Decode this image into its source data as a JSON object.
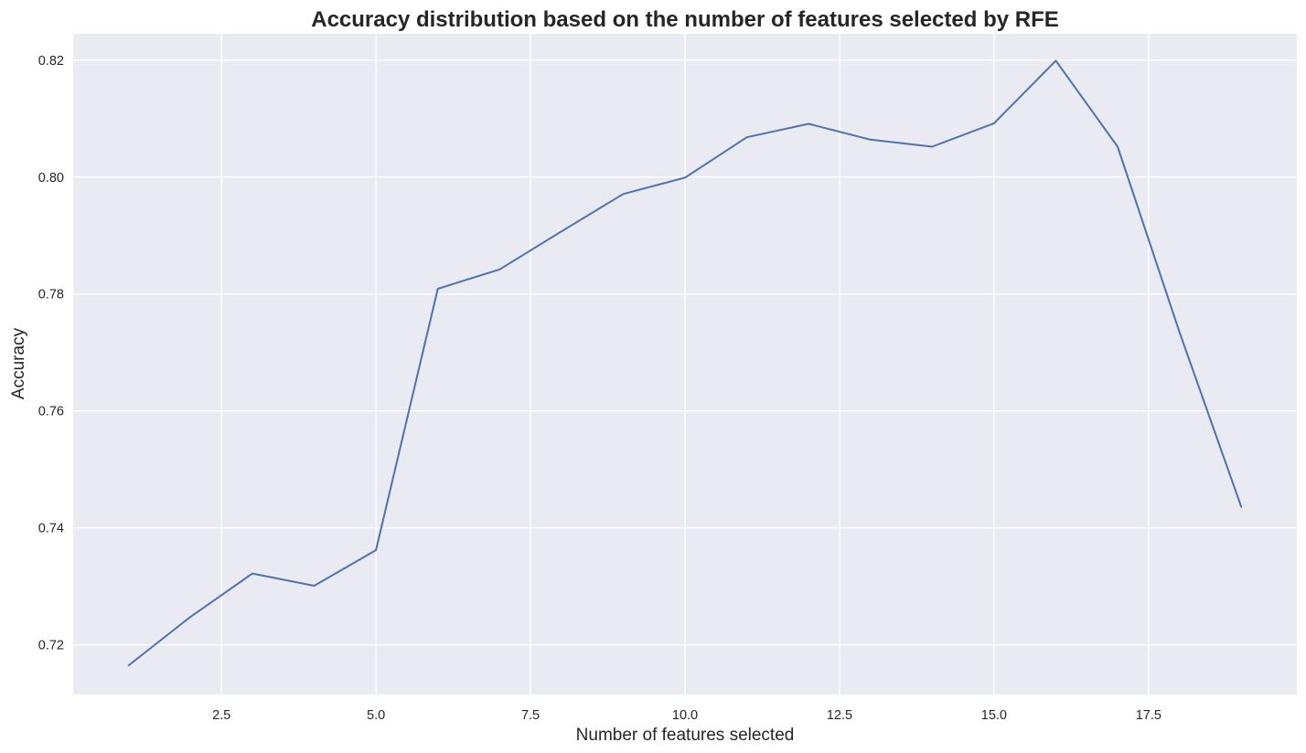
{
  "chart_data": {
    "type": "line",
    "title": "Accuracy distribution based on the number of features selected by RFE",
    "xlabel": "Number of features selected",
    "ylabel": "Accuracy",
    "xlim": [
      0.1,
      19.9
    ],
    "ylim": [
      0.7115,
      0.8245
    ],
    "x_ticks": [
      2.5,
      5.0,
      7.5,
      10.0,
      12.5,
      15.0,
      17.5
    ],
    "x_tick_labels": [
      "2.5",
      "5.0",
      "7.5",
      "10.0",
      "12.5",
      "15.0",
      "17.5"
    ],
    "y_ticks": [
      0.72,
      0.74,
      0.76,
      0.78,
      0.8,
      0.82
    ],
    "y_tick_labels": [
      "0.72",
      "0.74",
      "0.76",
      "0.78",
      "0.80",
      "0.82"
    ],
    "grid": true,
    "background_color": "#eaeaf2",
    "series": [
      {
        "color": "#4c72b0",
        "x": [
          1,
          2,
          3,
          4,
          5,
          6,
          7,
          8,
          9,
          10,
          11,
          12,
          13,
          14,
          15,
          16,
          17,
          18,
          19
        ],
        "y": [
          0.7165,
          0.7248,
          0.7322,
          0.7301,
          0.7362,
          0.7809,
          0.7842,
          0.7907,
          0.7971,
          0.7999,
          0.8068,
          0.8091,
          0.8064,
          0.8052,
          0.8092,
          0.8199,
          0.8052,
          0.7735,
          0.7436
        ]
      }
    ]
  }
}
